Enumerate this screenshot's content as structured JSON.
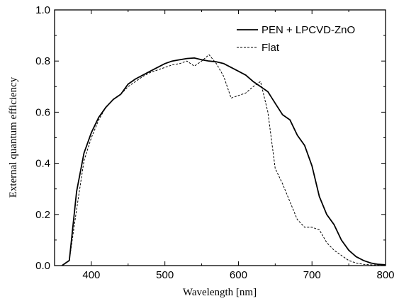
{
  "chart_data": {
    "type": "line",
    "xlabel": "Wavelength [nm]",
    "ylabel": "External quantum efficiency",
    "xlim": [
      350,
      800
    ],
    "ylim": [
      0.0,
      1.0
    ],
    "xticks": [
      400,
      500,
      600,
      700,
      800
    ],
    "yticks": [
      0.0,
      0.2,
      0.4,
      0.6,
      0.8,
      1.0
    ],
    "xtick_labels": [
      "400",
      "500",
      "600",
      "700",
      "800"
    ],
    "ytick_labels": [
      "0.0",
      "0.2",
      "0.4",
      "0.6",
      "0.8",
      "1.0"
    ],
    "grid": false,
    "legend_position": "top-right",
    "series": [
      {
        "name": "PEN + LPCVD-ZnO",
        "style": "solid",
        "color": "#000000",
        "x": [
          360,
          370,
          380,
          390,
          400,
          410,
          420,
          430,
          440,
          450,
          460,
          470,
          480,
          490,
          500,
          510,
          520,
          530,
          540,
          550,
          560,
          570,
          580,
          590,
          600,
          610,
          620,
          630,
          640,
          650,
          660,
          670,
          680,
          690,
          700,
          710,
          720,
          730,
          740,
          750,
          760,
          770,
          780,
          790,
          800
        ],
        "y": [
          0.0,
          0.02,
          0.29,
          0.44,
          0.52,
          0.58,
          0.62,
          0.65,
          0.67,
          0.71,
          0.73,
          0.745,
          0.76,
          0.775,
          0.79,
          0.8,
          0.805,
          0.81,
          0.812,
          0.805,
          0.8,
          0.797,
          0.79,
          0.775,
          0.76,
          0.745,
          0.72,
          0.7,
          0.68,
          0.635,
          0.59,
          0.57,
          0.51,
          0.47,
          0.39,
          0.27,
          0.2,
          0.16,
          0.1,
          0.06,
          0.035,
          0.02,
          0.01,
          0.005,
          0.003
        ]
      },
      {
        "name": "Flat",
        "style": "dashed",
        "color": "#000000",
        "x": [
          360,
          370,
          380,
          390,
          400,
          410,
          420,
          430,
          440,
          450,
          460,
          470,
          480,
          490,
          500,
          510,
          520,
          530,
          540,
          550,
          560,
          570,
          580,
          590,
          600,
          610,
          620,
          630,
          640,
          650,
          660,
          670,
          680,
          690,
          700,
          710,
          720,
          730,
          740,
          750,
          760,
          770,
          780,
          790,
          800
        ],
        "y": [
          0.0,
          0.02,
          0.22,
          0.41,
          0.5,
          0.57,
          0.62,
          0.65,
          0.67,
          0.7,
          0.72,
          0.74,
          0.755,
          0.765,
          0.775,
          0.785,
          0.79,
          0.8,
          0.78,
          0.8,
          0.825,
          0.79,
          0.74,
          0.655,
          0.665,
          0.675,
          0.7,
          0.72,
          0.6,
          0.38,
          0.32,
          0.25,
          0.18,
          0.15,
          0.15,
          0.14,
          0.09,
          0.06,
          0.04,
          0.02,
          0.01,
          0.005,
          0.003,
          0.002,
          0.001
        ]
      }
    ]
  }
}
